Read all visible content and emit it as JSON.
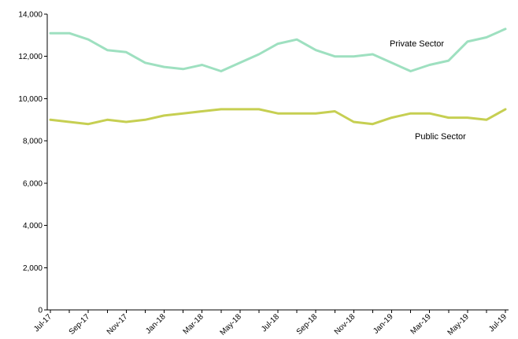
{
  "chart_data": {
    "type": "line",
    "title": "",
    "xlabel": "",
    "ylabel": "",
    "ylim": [
      0,
      14000
    ],
    "yticks": [
      0,
      2000,
      4000,
      6000,
      8000,
      10000,
      12000,
      14000
    ],
    "ytick_labels": [
      "0",
      "2,000",
      "4,000",
      "6,000",
      "8,000",
      "10,000",
      "12,000",
      "14,000"
    ],
    "grid": false,
    "legend": "none",
    "x": [
      "Jul-17",
      "Aug-17",
      "Sep-17",
      "Oct-17",
      "Nov-17",
      "Dec-17",
      "Jan-18",
      "Feb-18",
      "Mar-18",
      "Apr-18",
      "May-18",
      "Jun-18",
      "Jul-18",
      "Aug-18",
      "Sep-18",
      "Oct-18",
      "Nov-18",
      "Dec-18",
      "Jan-19",
      "Feb-19",
      "Mar-19",
      "Apr-19",
      "May-19",
      "Jun-19",
      "Jul-19"
    ],
    "xtick_labels": [
      "Jul-17",
      "Sep-17",
      "Nov-17",
      "Jan-18",
      "Mar-18",
      "May-18",
      "Jul-18",
      "Sep-18",
      "Nov-18",
      "Jan-19",
      "Mar-19",
      "May-19",
      "Jul-19"
    ],
    "series": [
      {
        "name": "Private Sector",
        "color": "#9ee0c0",
        "values": [
          13100,
          13100,
          12800,
          12300,
          12200,
          11700,
          11500,
          11400,
          11600,
          11300,
          11700,
          12100,
          12600,
          12800,
          12300,
          12000,
          12000,
          12100,
          11700,
          11300,
          11600,
          11800,
          12700,
          12900,
          13300
        ]
      },
      {
        "name": "Public Sector",
        "color": "#c6cf52",
        "values": [
          9000,
          8900,
          8800,
          9000,
          8900,
          9000,
          9200,
          9300,
          9400,
          9500,
          9500,
          9500,
          9300,
          9300,
          9300,
          9400,
          8900,
          8800,
          9100,
          9300,
          9300,
          9100,
          9100,
          9000,
          9500
        ]
      }
    ]
  }
}
